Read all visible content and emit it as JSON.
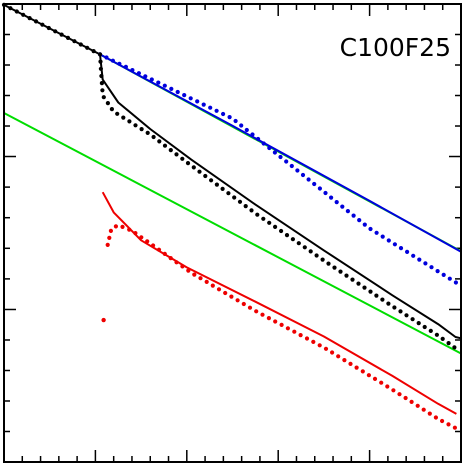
{
  "chart_data": {
    "type": "scatter",
    "annotation": "C100F25",
    "title": "",
    "xlabel": "",
    "ylabel": "",
    "xlim": [
      0,
      1
    ],
    "ylim": [
      0,
      1
    ],
    "grid": false,
    "legend": "none",
    "x_ticks": {
      "major": [
        0,
        0.2,
        0.4,
        0.6,
        0.8,
        1
      ],
      "minor_per_major": 5
    },
    "y_ticks": {
      "major": [
        0,
        0.333,
        0.667,
        1
      ],
      "minor_per_major": 5
    },
    "series": [
      {
        "kind": "line",
        "color": "#00dd00",
        "points": [
          [
            0.0,
            0.762
          ],
          [
            1.0,
            0.237
          ]
        ]
      },
      {
        "kind": "line",
        "color": "#00dd00",
        "points": [
          [
            0.21,
            0.89
          ],
          [
            1.0,
            0.46
          ]
        ]
      },
      {
        "kind": "line",
        "color": "#0000dd",
        "points": [
          [
            0.21,
            0.89
          ],
          [
            0.5,
            0.734
          ],
          [
            0.8,
            0.57
          ],
          [
            1.0,
            0.459
          ]
        ]
      },
      {
        "kind": "line",
        "color": "#000000",
        "points": [
          [
            0.0,
            0.998
          ],
          [
            0.21,
            0.89
          ],
          [
            0.216,
            0.835
          ],
          [
            0.25,
            0.785
          ],
          [
            0.32,
            0.727
          ],
          [
            0.41,
            0.66
          ],
          [
            0.55,
            0.562
          ],
          [
            0.7,
            0.462
          ],
          [
            0.85,
            0.364
          ],
          [
            0.95,
            0.301
          ],
          [
            0.988,
            0.273
          ],
          [
            1.0,
            0.27
          ]
        ]
      },
      {
        "kind": "line",
        "color": "#ee0000",
        "points": [
          [
            0.216,
            0.589
          ],
          [
            0.24,
            0.545
          ],
          [
            0.3,
            0.484
          ],
          [
            0.4,
            0.425
          ],
          [
            0.55,
            0.35
          ],
          [
            0.7,
            0.274
          ],
          [
            0.85,
            0.188
          ],
          [
            0.95,
            0.127
          ],
          [
            0.99,
            0.105
          ]
        ]
      },
      {
        "kind": "points",
        "color": "#0000dd",
        "points": [
          [
            0.21,
            0.89
          ],
          [
            0.5,
            0.75
          ],
          [
            0.8,
            0.51
          ],
          [
            0.995,
            0.388
          ]
        ]
      },
      {
        "kind": "points",
        "color": "#000000",
        "points": [
          [
            0.0,
            0.998
          ],
          [
            0.21,
            0.89
          ],
          [
            0.216,
            0.8
          ],
          [
            0.24,
            0.765
          ],
          [
            0.32,
            0.715
          ],
          [
            0.41,
            0.647
          ],
          [
            0.55,
            0.543
          ],
          [
            0.7,
            0.44
          ],
          [
            0.85,
            0.34
          ],
          [
            0.95,
            0.276
          ],
          [
            0.99,
            0.247
          ]
        ]
      },
      {
        "kind": "points",
        "color": "#ee0000",
        "points": [
          [
            0.218,
            0.31
          ],
          [
            0.227,
            0.474
          ],
          [
            0.235,
            0.509
          ],
          [
            0.25,
            0.517
          ],
          [
            0.28,
            0.505
          ],
          [
            0.33,
            0.47
          ],
          [
            0.41,
            0.413
          ],
          [
            0.55,
            0.33
          ],
          [
            0.7,
            0.25
          ],
          [
            0.85,
            0.158
          ],
          [
            0.95,
            0.094
          ],
          [
            0.99,
            0.073
          ]
        ]
      }
    ]
  }
}
